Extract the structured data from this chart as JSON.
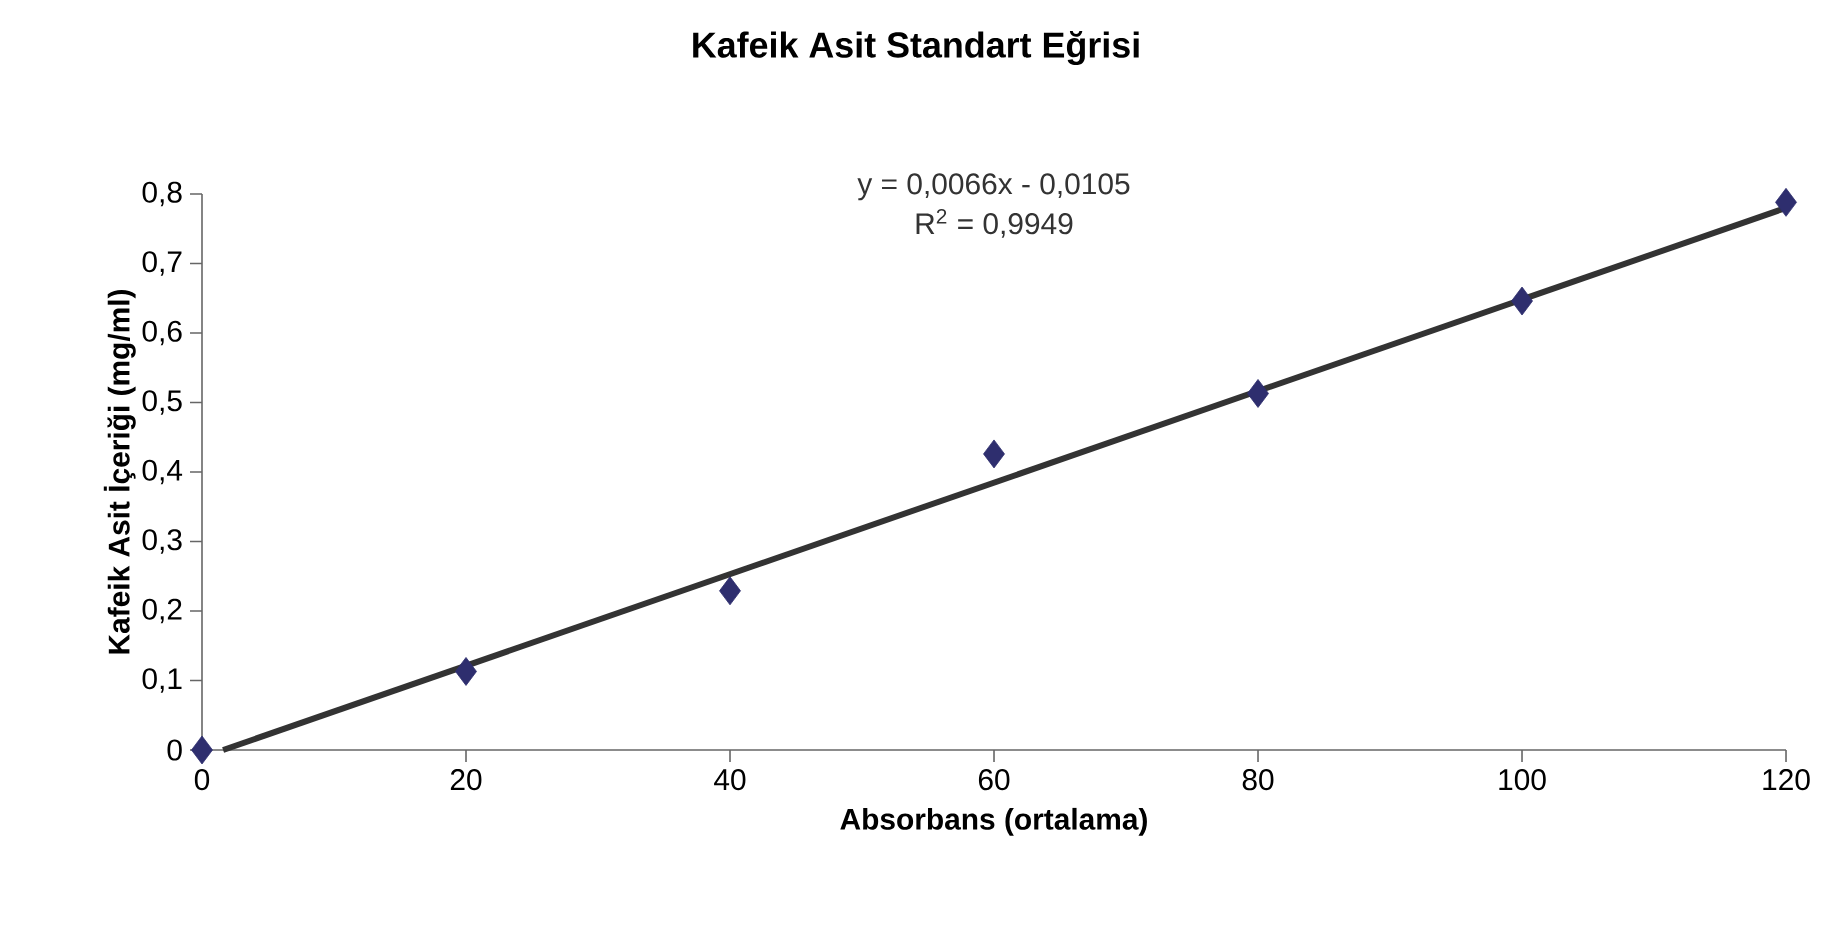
{
  "chart_data": {
    "type": "scatter",
    "title": "Kafeik Asit Standart Eğrisi",
    "xlabel": "Absorbans (ortalama)",
    "ylabel": "Kafeik Asit İçeriği (mg/ml)",
    "annotations": [
      "y = 0,0066x - 0,0105",
      "R$^{2}$ = 0,9949"
    ],
    "x": [
      0,
      20,
      40,
      60,
      80,
      100,
      120
    ],
    "series": [
      {
        "color": "#2e2e6e",
        "marker": "diamond",
        "values": [
          0,
          0.113,
          0.229,
          0.426,
          0.513,
          0.646,
          0.788
        ]
      },
      {
        "type": "line",
        "color": "#333333",
        "marker": "none",
        "line_style": "solid",
        "x": [
          1.6,
          120
        ],
        "values": [
          0,
          0.78
        ]
      }
    ],
    "xlim": [
      0,
      120
    ],
    "ylim": [
      0,
      0.8
    ],
    "xticks": [
      0,
      20,
      40,
      60,
      80,
      100,
      120
    ],
    "yticks": [
      0,
      {
        "value": 0.1,
        "label": "0,1"
      },
      {
        "value": 0.2,
        "label": "0,2"
      },
      {
        "value": 0.3,
        "label": "0,3"
      },
      {
        "value": 0.4,
        "label": "0,4"
      },
      {
        "value": 0.5,
        "label": "0,5"
      },
      {
        "value": 0.6,
        "label": "0,6"
      },
      {
        "value": 0.7,
        "label": "0,7"
      },
      {
        "value": 0.8,
        "label": "0,8"
      }
    ],
    "grid": false
  }
}
